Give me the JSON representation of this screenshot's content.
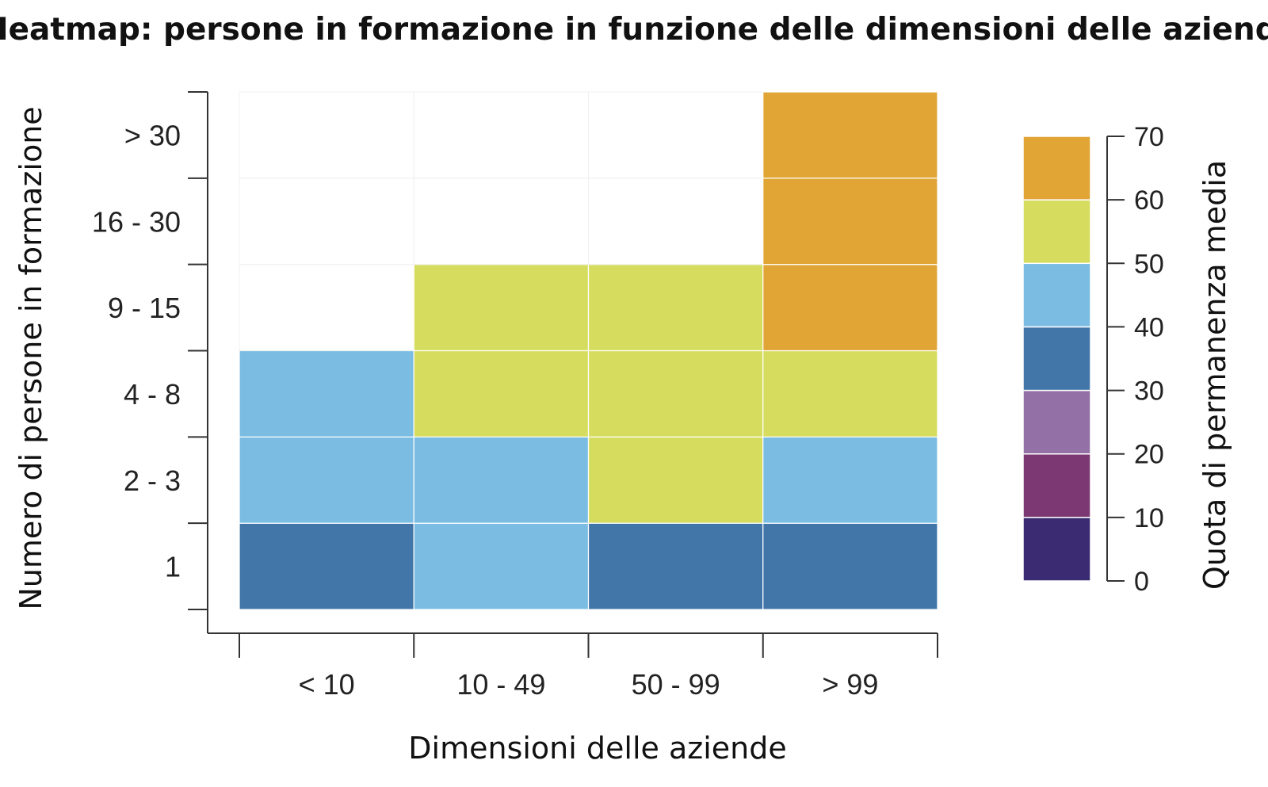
{
  "chart_data": {
    "type": "heatmap",
    "title": "Heatmap: persone in formazione in funzione delle dimensioni delle aziende",
    "xlabel": "Dimensioni delle aziende",
    "ylabel": "Numero di persone in formazione",
    "x_categories": [
      "< 10",
      "10 - 49",
      "50 - 99",
      "> 99"
    ],
    "y_categories": [
      "1",
      "2 - 3",
      "4 - 8",
      "9 - 15",
      "16 - 30",
      "> 30"
    ],
    "values": [
      [
        35,
        45,
        35,
        35
      ],
      [
        45,
        45,
        55,
        45
      ],
      [
        45,
        55,
        55,
        55
      ],
      [
        null,
        55,
        55,
        65
      ],
      [
        null,
        null,
        null,
        65
      ],
      [
        null,
        null,
        null,
        65
      ]
    ],
    "legend": {
      "title": "Quota di permanenza media",
      "ticks": [
        "0",
        "10",
        "20",
        "30",
        "40",
        "50",
        "60",
        "70"
      ],
      "bins": [
        {
          "min": 0,
          "max": 10,
          "color": "#3a2b72"
        },
        {
          "min": 10,
          "max": 20,
          "color": "#7b3873"
        },
        {
          "min": 20,
          "max": 30,
          "color": "#9370a5"
        },
        {
          "min": 30,
          "max": 40,
          "color": "#4276a8"
        },
        {
          "min": 40,
          "max": 50,
          "color": "#7bbde2"
        },
        {
          "min": 50,
          "max": 60,
          "color": "#d6dc5e"
        },
        {
          "min": 60,
          "max": 70,
          "color": "#e1a536"
        }
      ]
    }
  }
}
